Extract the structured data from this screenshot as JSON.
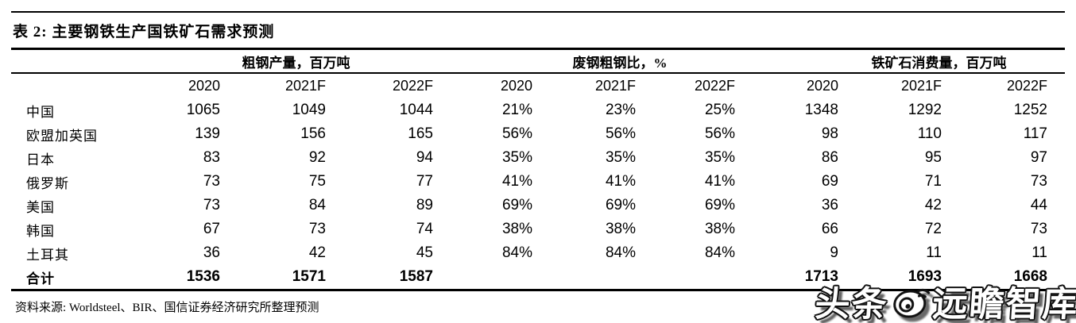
{
  "title": "表 2:  主要钢铁生产国铁矿石需求预测",
  "table": {
    "groups": [
      {
        "label": "粗钢产量，百万吨"
      },
      {
        "label": "废钢粗钢比，%"
      },
      {
        "label": "铁矿石消费量，百万吨"
      }
    ],
    "year_headers": [
      "2020",
      "2021F",
      "2022F",
      "2020",
      "2021F",
      "2022F",
      "2020",
      "2021F",
      "2022F"
    ],
    "rows": [
      {
        "name": "中国",
        "bold": false,
        "values": [
          "1065",
          "1049",
          "1044",
          "21%",
          "23%",
          "25%",
          "1348",
          "1292",
          "1252"
        ]
      },
      {
        "name": "欧盟加英国",
        "bold": false,
        "values": [
          "139",
          "156",
          "165",
          "56%",
          "56%",
          "56%",
          "98",
          "110",
          "117"
        ]
      },
      {
        "name": "日本",
        "bold": false,
        "values": [
          "83",
          "92",
          "94",
          "35%",
          "35%",
          "35%",
          "86",
          "95",
          "97"
        ]
      },
      {
        "name": "俄罗斯",
        "bold": false,
        "values": [
          "73",
          "75",
          "77",
          "41%",
          "41%",
          "41%",
          "69",
          "71",
          "73"
        ]
      },
      {
        "name": "美国",
        "bold": false,
        "values": [
          "73",
          "84",
          "89",
          "69%",
          "69%",
          "69%",
          "36",
          "42",
          "44"
        ]
      },
      {
        "name": "韩国",
        "bold": false,
        "values": [
          "67",
          "73",
          "74",
          "38%",
          "38%",
          "38%",
          "66",
          "72",
          "73"
        ]
      },
      {
        "name": "土耳其",
        "bold": false,
        "values": [
          "36",
          "42",
          "45",
          "84%",
          "84%",
          "84%",
          "9",
          "11",
          "11"
        ]
      },
      {
        "name": "合计",
        "bold": true,
        "values": [
          "1536",
          "1571",
          "1587",
          "",
          "",
          "",
          "1713",
          "1693",
          "1668"
        ]
      }
    ]
  },
  "source": "资料来源: Worldsteel、BIR、国信证券经济研究所整理预测",
  "watermark": {
    "prefix": "头条",
    "suffix": "远瞻智库"
  },
  "colors": {
    "text": "#000000",
    "background": "#ffffff",
    "watermark_fill": "#ffffff",
    "watermark_outline": "#111111"
  }
}
